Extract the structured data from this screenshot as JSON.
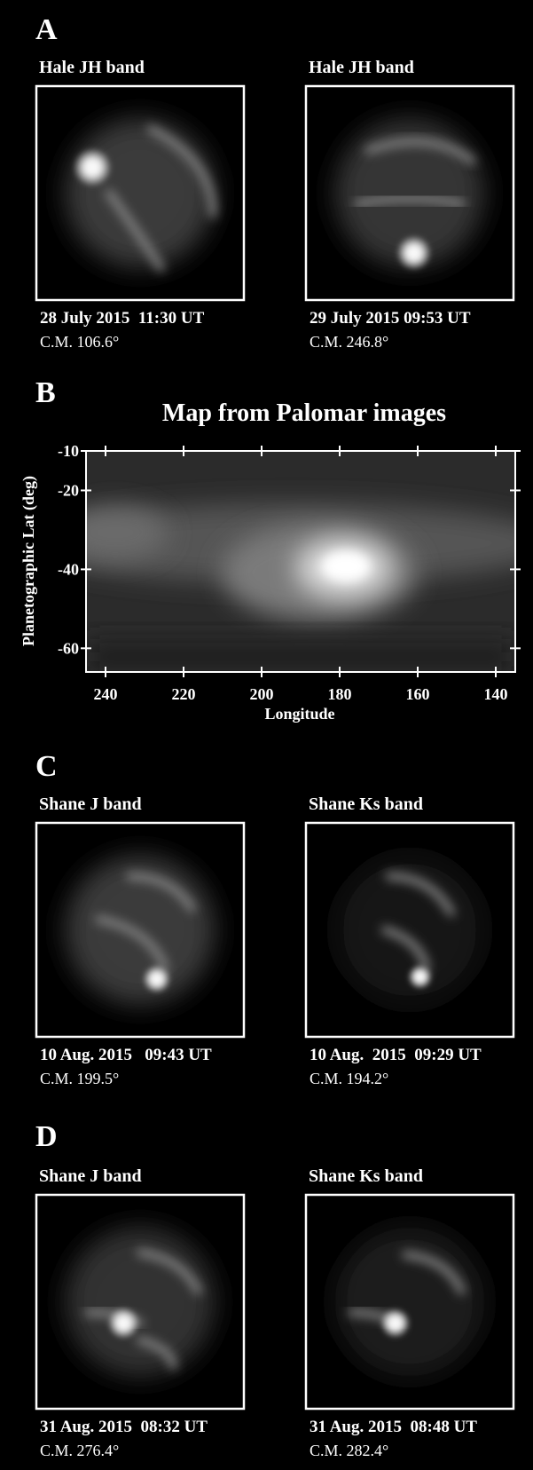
{
  "panels": [
    {
      "label": "A",
      "images": [
        {
          "title": "Hale JH band",
          "caption": "28 July 2015  11:30 UT",
          "cm": "C.M. 106.6°"
        },
        {
          "title": "Hale JH band",
          "caption": "29 July 2015 09:53 UT",
          "cm": "C.M. 246.8°"
        }
      ]
    },
    {
      "label": "C",
      "images": [
        {
          "title": "Shane J band",
          "caption": "10 Aug. 2015   09:43 UT",
          "cm": "C.M. 199.5°"
        },
        {
          "title": "Shane Ks band",
          "caption": "10 Aug.  2015  09:29 UT",
          "cm": "C.M. 194.2°"
        }
      ]
    },
    {
      "label": "D",
      "images": [
        {
          "title": "Shane J band",
          "caption": "31 Aug. 2015  08:32 UT",
          "cm": "C.M. 276.4°"
        },
        {
          "title": "Shane Ks band",
          "caption": "31 Aug. 2015  08:48 UT",
          "cm": "C.M. 282.4°"
        }
      ]
    }
  ],
  "map_panel": {
    "label": "B",
    "title": "Map from Palomar images",
    "xlabel": "Longitude",
    "ylabel": "Planetographic Lat (deg)",
    "xlim": [
      245,
      135
    ],
    "ylim": [
      -10,
      -66
    ],
    "xticks": [
      240,
      220,
      200,
      180,
      160,
      140
    ],
    "yticks": [
      -10,
      -20,
      -40,
      -60
    ]
  }
}
